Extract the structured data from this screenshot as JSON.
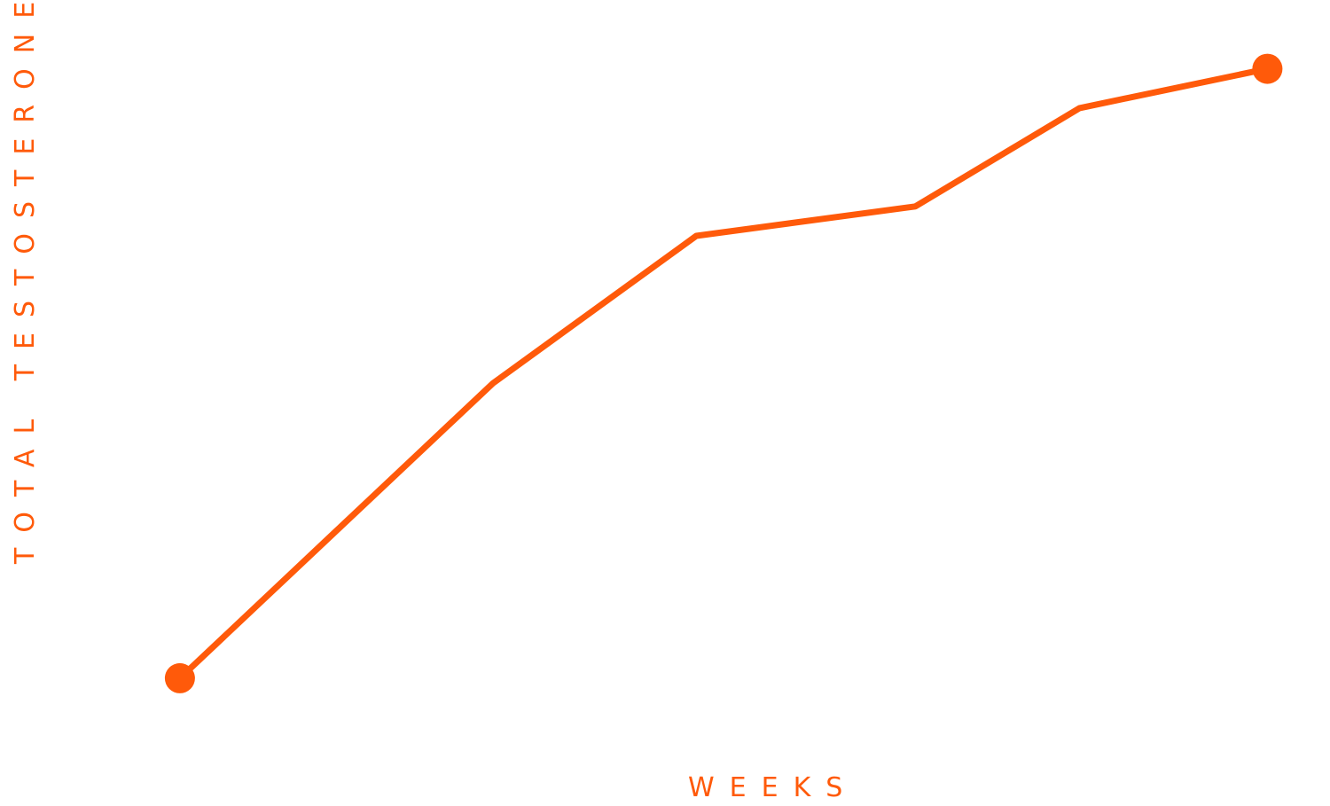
{
  "chart_data": {
    "type": "line",
    "title": "",
    "xlabel": "WEEKS",
    "ylabel": "TOTAL TESTOSTERONE",
    "x": [
      0,
      1,
      2,
      3.3,
      4.7,
      5.75,
      6.95
    ],
    "series": [
      {
        "values": [
          1.3,
          2.8,
          4.3,
          5.8,
          6.1,
          7.1,
          7.5
        ]
      }
    ],
    "xlim": [
      -1.15,
      7.35
    ],
    "ylim": [
      0,
      8.2
    ],
    "grid": false,
    "legend": "none",
    "endpoint_markers": true
  },
  "colors": {
    "line": "#FF5A0A",
    "background": "#FFFFFF"
  }
}
